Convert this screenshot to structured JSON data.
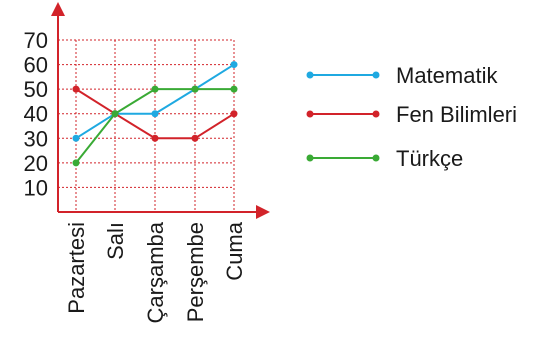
{
  "chart_data": {
    "type": "line",
    "categories": [
      "Pazartesi",
      "Salı",
      "Çarşamba",
      "Perşembe",
      "Cuma"
    ],
    "yticks": [
      10,
      20,
      30,
      40,
      50,
      60,
      70
    ],
    "ylim": [
      0,
      70
    ],
    "grid": true,
    "legend_position": "right",
    "series": [
      {
        "name": "Matematik",
        "color": "#1fa9e1",
        "values": [
          30,
          40,
          40,
          50,
          60
        ]
      },
      {
        "name": "Fen Bilimleri",
        "color": "#d2232a",
        "values": [
          50,
          40,
          30,
          30,
          40
        ]
      },
      {
        "name": "Türkçe",
        "color": "#3aaa35",
        "values": [
          20,
          40,
          50,
          50,
          50
        ]
      }
    ],
    "axis_color": "#d2232a",
    "grid_color": "#d2232a"
  }
}
